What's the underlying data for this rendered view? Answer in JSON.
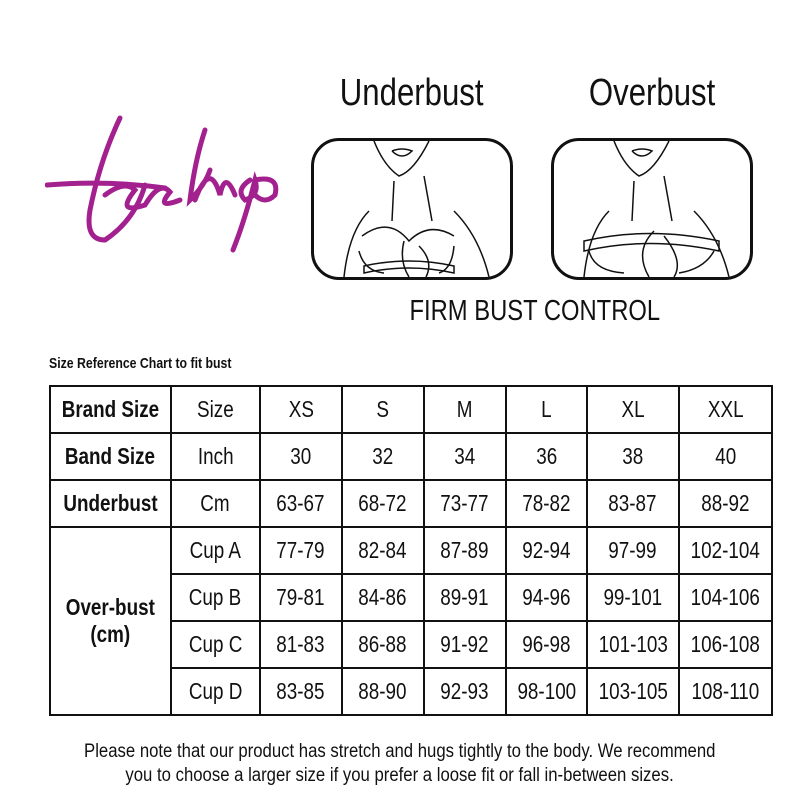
{
  "brand": {
    "logo_text": "Feelings",
    "color": "#a3208f"
  },
  "headings": {
    "underbust": "Underbust",
    "overbust": "Overbust"
  },
  "illustrations": [
    {
      "label": "underbust-measurement-illustration"
    },
    {
      "label": "overbust-measurement-illustration"
    }
  ],
  "subtitle": "FIRM BUST CONTROL",
  "table": {
    "caption": "Size Reference Chart to fit bust",
    "rows": [
      {
        "label": "Brand Size",
        "unit": "Size",
        "values": [
          "XS",
          "S",
          "M",
          "L",
          "XL",
          "XXL"
        ]
      },
      {
        "label": "Band Size",
        "unit": "Inch",
        "values": [
          "30",
          "32",
          "34",
          "36",
          "38",
          "40"
        ]
      },
      {
        "label": "Underbust",
        "unit": "Cm",
        "values": [
          "63-67",
          "68-72",
          "73-77",
          "78-82",
          "83-87",
          "88-92"
        ]
      }
    ],
    "overbust": {
      "label_line1": "Over-bust",
      "label_line2": "(cm)",
      "rows": [
        {
          "unit": "Cup A",
          "values": [
            "77-79",
            "82-84",
            "87-89",
            "92-94",
            "97-99",
            "102-104"
          ]
        },
        {
          "unit": "Cup B",
          "values": [
            "79-81",
            "84-86",
            "89-91",
            "94-96",
            "99-101",
            "104-106"
          ]
        },
        {
          "unit": "Cup C",
          "values": [
            "81-83",
            "86-88",
            "91-92",
            "96-98",
            "101-103",
            "106-108"
          ]
        },
        {
          "unit": "Cup D",
          "values": [
            "83-85",
            "88-90",
            "92-93",
            "98-100",
            "103-105",
            "108-110"
          ]
        }
      ]
    }
  },
  "note": {
    "line1": "Please note that our product has stretch and hugs tightly to the body. We recommend",
    "line2": "you to choose a larger size if you prefer a loose fit or fall in-between sizes."
  }
}
